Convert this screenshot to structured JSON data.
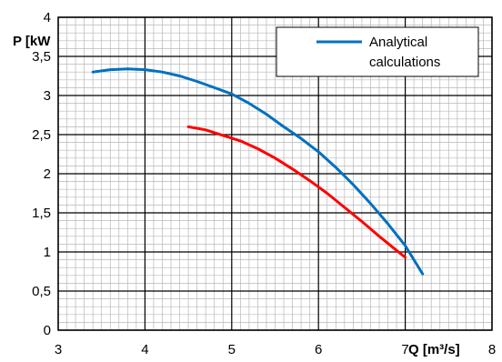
{
  "chart_data": {
    "type": "line",
    "title": "",
    "xlabel": "Q [m³/s]",
    "ylabel": "P [kW",
    "xlim": [
      3,
      8
    ],
    "ylim": [
      0,
      4
    ],
    "x_ticks": [
      "3",
      "4",
      "5",
      "6",
      "7",
      "8"
    ],
    "y_ticks": [
      "0",
      "0,5",
      "1",
      "1,5",
      "2",
      "2,5",
      "3",
      "3,5",
      "4"
    ],
    "grid": true,
    "legend_position": "top-right",
    "series": [
      {
        "name": "Analytical calculations",
        "legend_lines": [
          "Analytical",
          "calculations"
        ],
        "color": "#0070C0",
        "x": [
          3.4,
          3.6,
          3.8,
          4.0,
          4.2,
          4.4,
          4.6,
          4.8,
          5.0,
          5.2,
          5.4,
          5.6,
          5.8,
          6.0,
          6.2,
          6.4,
          6.6,
          6.8,
          7.0,
          7.2
        ],
        "y": [
          3.3,
          3.33,
          3.34,
          3.33,
          3.3,
          3.25,
          3.18,
          3.1,
          3.02,
          2.9,
          2.76,
          2.6,
          2.45,
          2.28,
          2.08,
          1.86,
          1.62,
          1.36,
          1.08,
          0.72
        ]
      },
      {
        "name": "",
        "color": "#FF0000",
        "x": [
          4.5,
          4.7,
          4.9,
          5.1,
          5.3,
          5.5,
          5.7,
          5.9,
          6.1,
          6.3,
          6.5,
          6.7,
          6.9,
          7.0
        ],
        "y": [
          2.6,
          2.56,
          2.49,
          2.42,
          2.32,
          2.2,
          2.06,
          1.91,
          1.75,
          1.57,
          1.39,
          1.2,
          1.02,
          0.93
        ]
      }
    ]
  }
}
